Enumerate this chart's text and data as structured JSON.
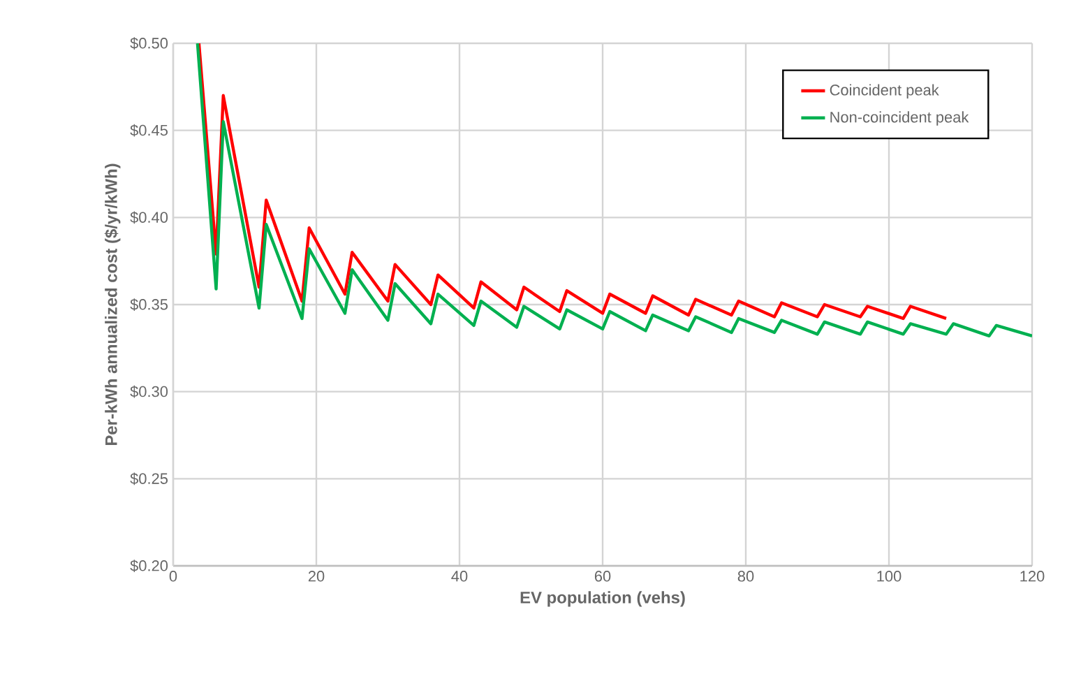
{
  "chart_data": {
    "type": "line",
    "xlabel": "EV population (vehs)",
    "ylabel": "Per-kWh annualized cost ($/yr/kWh)",
    "xlim": [
      0,
      120
    ],
    "xticks": [
      0,
      20,
      40,
      60,
      80,
      100,
      120
    ],
    "ylim": [
      0.2,
      0.5
    ],
    "yticks": [
      {
        "value": 0.2,
        "label": "$0.20"
      },
      {
        "value": 0.25,
        "label": "$0.25"
      },
      {
        "value": 0.3,
        "label": "$0.30"
      },
      {
        "value": 0.35,
        "label": "$0.35"
      },
      {
        "value": 0.4,
        "label": "$0.40"
      },
      {
        "value": 0.45,
        "label": "$0.45"
      },
      {
        "value": 0.5,
        "label": "$0.50"
      }
    ],
    "grid": true,
    "legend": "top right",
    "marker": "none",
    "line_style": "solid",
    "series": [
      {
        "name": "Coincident peak",
        "color": "#ff0000",
        "x": [
          3.6,
          6,
          7,
          12,
          13,
          18,
          19,
          24,
          25,
          30,
          31,
          36,
          37,
          42,
          43,
          48,
          49,
          54,
          55,
          60,
          61,
          66,
          67,
          72,
          73,
          78,
          79,
          84,
          85,
          90,
          91,
          96,
          97,
          102,
          103,
          108
        ],
        "values": [
          0.5,
          0.379,
          0.47,
          0.36,
          0.41,
          0.352,
          0.394,
          0.356,
          0.38,
          0.352,
          0.373,
          0.35,
          0.367,
          0.348,
          0.363,
          0.347,
          0.36,
          0.346,
          0.358,
          0.345,
          0.356,
          0.345,
          0.355,
          0.344,
          0.353,
          0.344,
          0.352,
          0.343,
          0.351,
          0.343,
          0.35,
          0.343,
          0.349,
          0.342,
          0.349,
          0.342
        ]
      },
      {
        "name": "Non-coincident peak",
        "color": "#00b050",
        "x": [
          3.4,
          6,
          7,
          12,
          13,
          18,
          19,
          24,
          25,
          30,
          31,
          36,
          37,
          42,
          43,
          48,
          49,
          54,
          55,
          60,
          61,
          66,
          67,
          72,
          73,
          78,
          79,
          84,
          85,
          90,
          91,
          96,
          97,
          102,
          103,
          108,
          109,
          114,
          115,
          120
        ],
        "values": [
          0.5,
          0.359,
          0.455,
          0.348,
          0.396,
          0.342,
          0.382,
          0.345,
          0.37,
          0.341,
          0.362,
          0.339,
          0.356,
          0.338,
          0.352,
          0.337,
          0.349,
          0.336,
          0.347,
          0.336,
          0.346,
          0.335,
          0.344,
          0.335,
          0.343,
          0.334,
          0.342,
          0.334,
          0.341,
          0.333,
          0.34,
          0.333,
          0.34,
          0.333,
          0.339,
          0.333,
          0.339,
          0.332,
          0.338,
          0.332
        ]
      }
    ]
  }
}
